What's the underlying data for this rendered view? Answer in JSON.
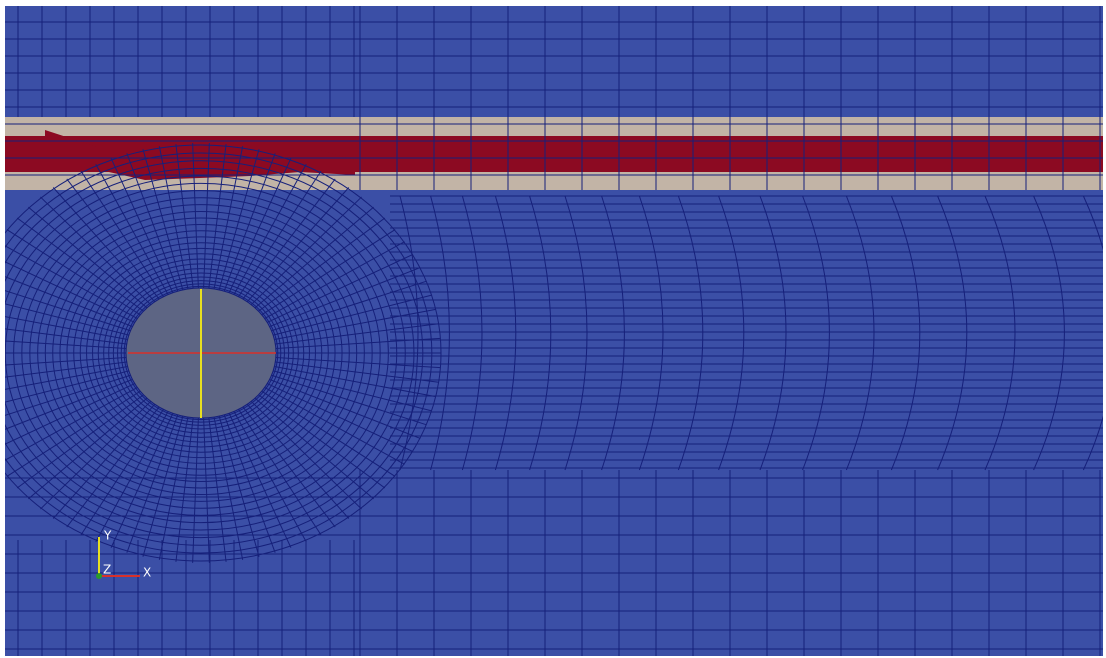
{
  "axes_triad": {
    "labels": {
      "y": "Y",
      "z": "Z",
      "x": "X"
    }
  }
}
